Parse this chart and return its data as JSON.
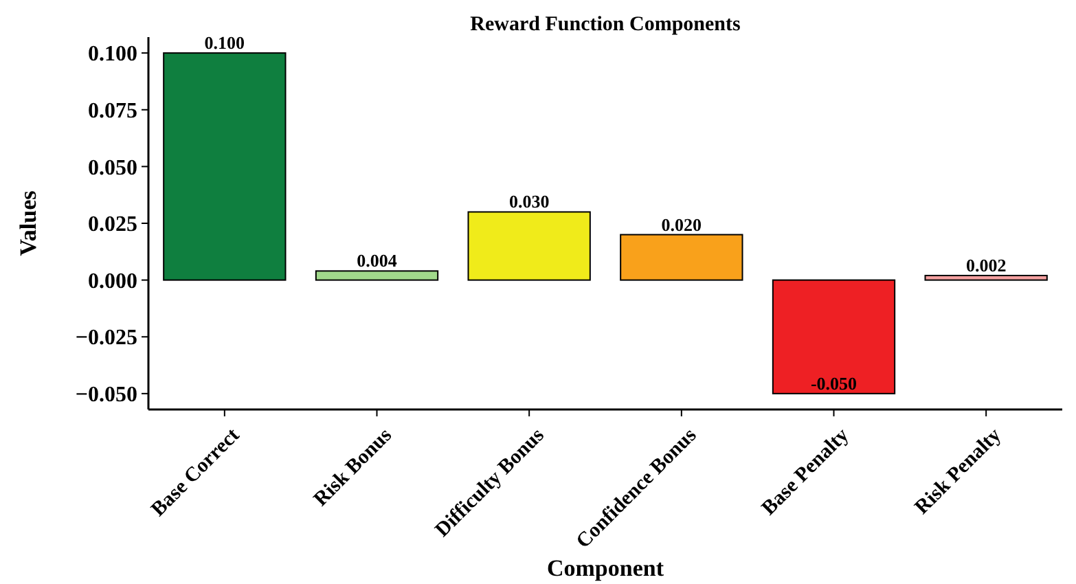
{
  "chart_data": {
    "type": "bar",
    "title": "Reward Function Components",
    "xlabel": "Component",
    "ylabel": "Values",
    "categories": [
      "Base Correct",
      "Risk Bonus",
      "Difficulty Bonus",
      "Confidence Bonus",
      "Base Penalty",
      "Risk Penalty"
    ],
    "values": [
      0.1,
      0.004,
      0.03,
      0.02,
      -0.05,
      0.002
    ],
    "colors": [
      "#0f7f3f",
      "#a1d98b",
      "#f0eb1a",
      "#f9a11b",
      "#ee2024",
      "#f4a0a0"
    ],
    "value_labels": [
      "0.100",
      "0.004",
      "0.030",
      "0.020",
      "-0.050",
      "0.002"
    ],
    "ylim": [
      -0.057,
      0.107
    ],
    "yticks": [
      {
        "value": -0.05,
        "label": "−0.050"
      },
      {
        "value": -0.025,
        "label": "−0.025"
      },
      {
        "value": 0,
        "label": "0.000"
      },
      {
        "value": 0.025,
        "label": "0.025"
      },
      {
        "value": 0.05,
        "label": "0.050"
      },
      {
        "value": 0.075,
        "label": "0.075"
      },
      {
        "value": 0.1,
        "label": "0.100"
      }
    ],
    "grid": false
  }
}
